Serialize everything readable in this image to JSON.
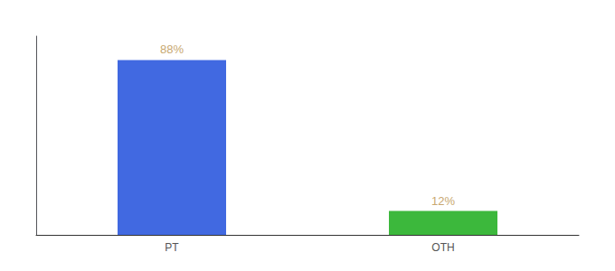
{
  "chart_data": {
    "type": "bar",
    "categories": [
      "PT",
      "OTH"
    ],
    "values": [
      88,
      12
    ],
    "colors": [
      "#4169e1",
      "#3cb83c"
    ],
    "data_labels": true,
    "value_labels": [
      "88%",
      "12%"
    ],
    "ylim": [
      0,
      100
    ],
    "grid": false,
    "tick_labels": "x"
  }
}
